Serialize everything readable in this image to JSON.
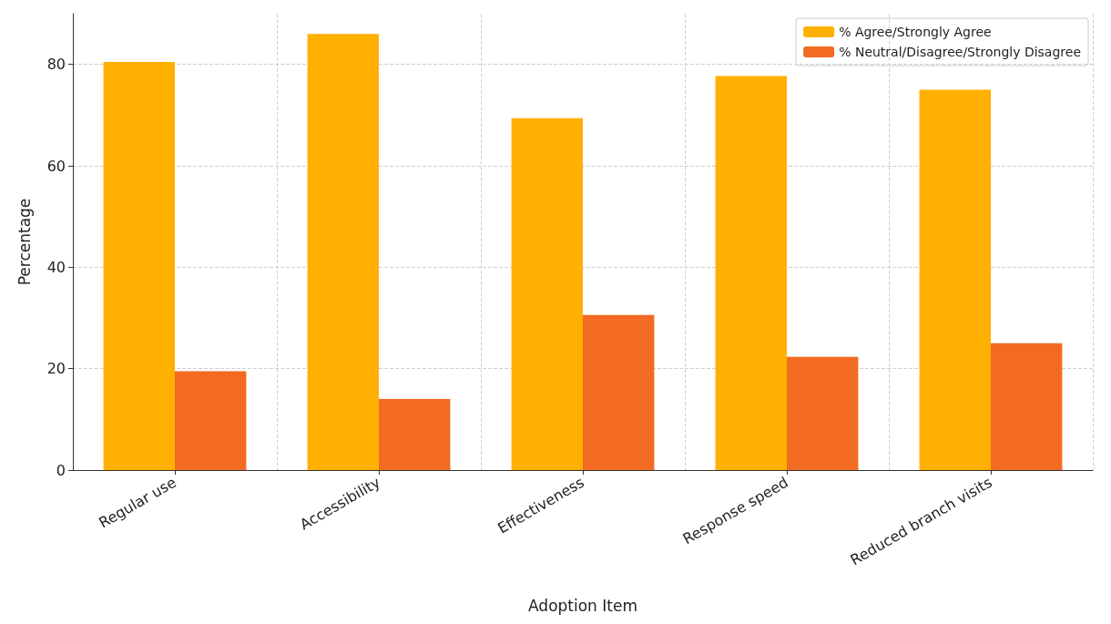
{
  "chart_data": {
    "type": "bar",
    "xlabel": "Adoption Item",
    "ylabel": "Percentage",
    "categories": [
      "Regular use",
      "Accessibility",
      "Effectiveness",
      "Response speed",
      "Reduced branch visits"
    ],
    "series": [
      {
        "name": "% Agree/Strongly Agree",
        "color": "#ffb000",
        "values": [
          80.5,
          86.0,
          69.4,
          77.7,
          75.0
        ]
      },
      {
        "name": "% Neutral/Disagree/Strongly Disagree",
        "color": "#f26b21",
        "values": [
          19.5,
          14.0,
          30.6,
          22.3,
          25.0
        ]
      }
    ],
    "ylim": [
      0,
      90
    ],
    "yticks": [
      0,
      20,
      40,
      60,
      80
    ],
    "grid": true,
    "legend": "top right"
  }
}
